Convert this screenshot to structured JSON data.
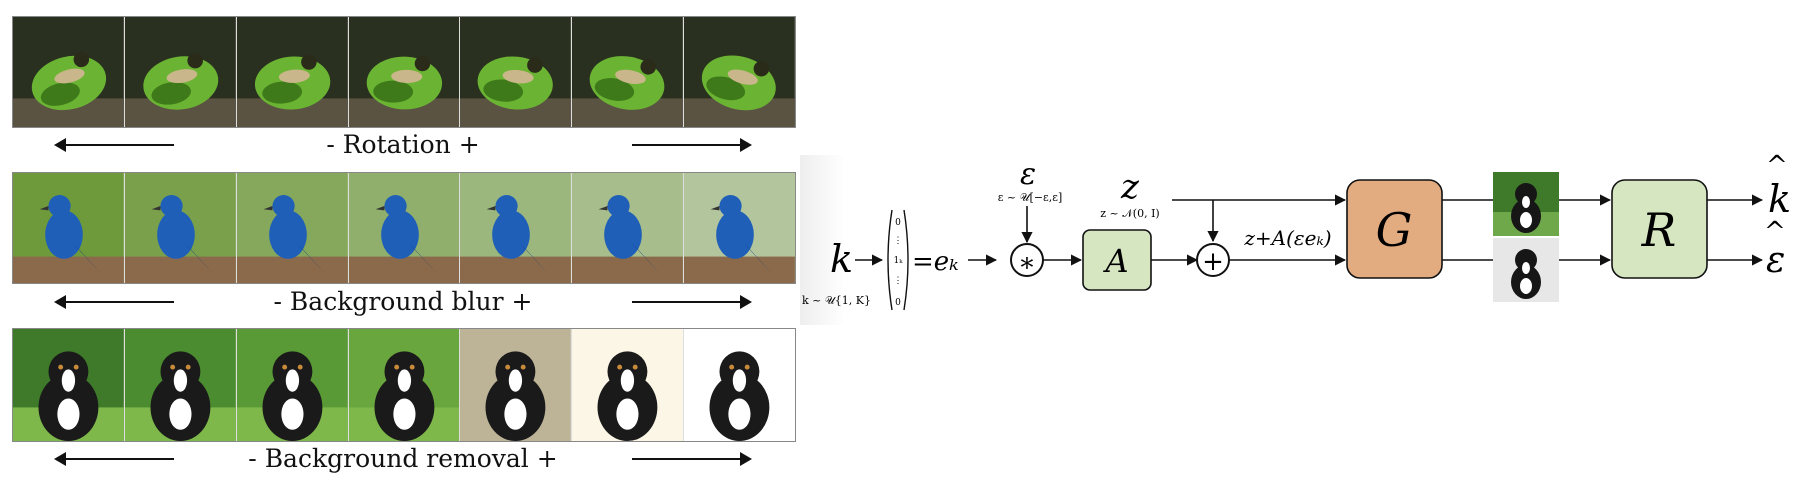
{
  "rows": [
    {
      "id": "rotation",
      "minus": "-",
      "label": "Rotation",
      "plus": "+",
      "subject": "frog",
      "colors": {
        "bg": "#2a3020",
        "ground": "#5b5342",
        "subject": "#6bb433",
        "shade": "#3e7a1a"
      }
    },
    {
      "id": "background-blur",
      "minus": "-",
      "label": "Background blur",
      "plus": "+",
      "subject": "bird",
      "colors": {
        "bg": "#6f9a3c",
        "ground": "#8a6a4a",
        "subject": "#1f5fb8",
        "shade": "#0f3a80"
      }
    },
    {
      "id": "background-removal",
      "minus": "-",
      "label": "Background removal",
      "plus": "+",
      "subject": "puppy",
      "colors": {
        "bg": "#4f8f2a",
        "ground": "#cfcab5",
        "subject": "#1a1a1a",
        "shade": "#ffffff"
      }
    }
  ],
  "diagram": {
    "k_var": "k",
    "k_dist": "k ~ 𝒰{1, K}",
    "onehot_top": "0",
    "onehot_mid": "1ₖ",
    "onehot_bot": "0",
    "ek_eq": "=eₖ",
    "eps_var": "ε",
    "eps_dist": "ε ~ 𝒰[−ε,ε]",
    "mult_symbol": "∗",
    "A_label": "A",
    "z_var": "z",
    "z_dist": "z ~ 𝒩(0, I)",
    "plus_symbol": "+",
    "shift_label": "z+A(εeₖ)",
    "G_label": "G",
    "R_label": "R",
    "k_hat": "k",
    "eps_hat": "ε",
    "hat": "^",
    "colors": {
      "A": "#d5e6c0",
      "G": "#e3ab80",
      "R": "#d5e6c0",
      "edge": "#111111"
    }
  }
}
